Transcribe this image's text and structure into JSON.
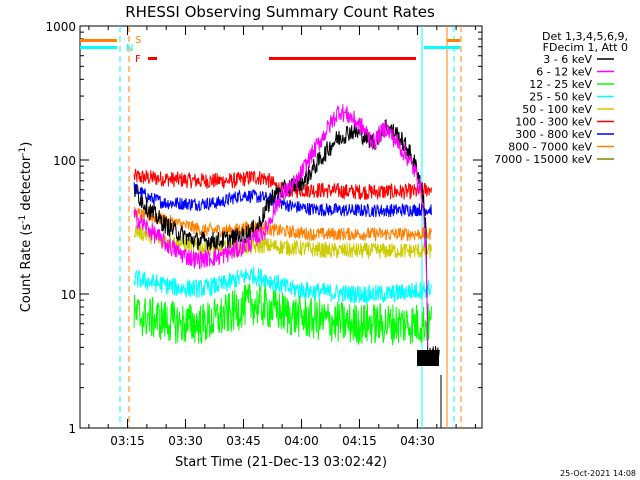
{
  "chart_data": {
    "type": "line",
    "title": "RHESSI Observing Summary Count Rates",
    "xlabel": "Start Time (21-Dec-13 03:02:42)",
    "ylabel_main": "Count Rate (s",
    "ylabel_sup1": "-1",
    "ylabel_mid": " detector",
    "ylabel_sup2": "-1",
    "ylabel_end": ")",
    "yscale": "log",
    "ylim": [
      1,
      1000
    ],
    "xlim_minutes": [
      0,
      104
    ],
    "x_tick_minutes": [
      12.3,
      27.3,
      42.3,
      57.3,
      72.3,
      87.3
    ],
    "x_tick_labels": [
      "03:15",
      "03:30",
      "03:45",
      "04:00",
      "04:15",
      "04:30"
    ],
    "y_tick_values": [
      1,
      10,
      100,
      1000
    ],
    "y_tick_labels": [
      "1",
      "10",
      "100",
      "1000"
    ],
    "legend": {
      "position": "right",
      "header1": "Det 1,3,4,5,6,9,",
      "header2": "FDecim 1, Att 0",
      "entries": [
        {
          "name": "3 - 6 keV",
          "color": "#000000"
        },
        {
          "name": "6 - 12 keV",
          "color": "#ff00ff"
        },
        {
          "name": "12 - 25 keV",
          "color": "#00ff00"
        },
        {
          "name": "25 - 50 keV",
          "color": "#00ffff"
        },
        {
          "name": "50 - 100 keV",
          "color": "#cccc00"
        },
        {
          "name": "100 - 300 keV",
          "color": "#ff0000"
        },
        {
          "name": "300 - 800 keV",
          "color": "#0000ff"
        },
        {
          "name": "800 - 7000 keV",
          "color": "#ff8000"
        },
        {
          "name": "7000 - 15000 keV",
          "color": "#808000"
        }
      ]
    },
    "flags": [
      {
        "label": "S",
        "color": "#ff8000"
      },
      {
        "label": "N",
        "color": "#00ffff"
      },
      {
        "label": "F",
        "color": "#ff0000"
      }
    ],
    "series": [
      {
        "color": "#ff0000",
        "noise": 0.06,
        "points": [
          [
            14,
            75
          ],
          [
            20,
            73
          ],
          [
            30,
            70
          ],
          [
            40,
            70
          ],
          [
            45,
            75
          ],
          [
            48,
            73
          ],
          [
            52,
            60
          ],
          [
            60,
            60
          ],
          [
            70,
            58
          ],
          [
            80,
            58
          ],
          [
            88,
            58
          ],
          [
            91,
            62
          ]
        ]
      },
      {
        "color": "#0000ff",
        "noise": 0.05,
        "points": [
          [
            14,
            62
          ],
          [
            18,
            52
          ],
          [
            22,
            48
          ],
          [
            30,
            47
          ],
          [
            36,
            48
          ],
          [
            42,
            55
          ],
          [
            48,
            52
          ],
          [
            55,
            45
          ],
          [
            60,
            43
          ],
          [
            70,
            42
          ],
          [
            80,
            42
          ],
          [
            91,
            43
          ]
        ]
      },
      {
        "color": "#ff8000",
        "noise": 0.05,
        "points": [
          [
            14,
            40
          ],
          [
            20,
            37
          ],
          [
            26,
            33
          ],
          [
            32,
            30
          ],
          [
            40,
            30
          ],
          [
            45,
            32
          ],
          [
            50,
            30
          ],
          [
            60,
            28
          ],
          [
            70,
            28
          ],
          [
            80,
            28
          ],
          [
            91,
            28
          ]
        ]
      },
      {
        "color": "#cccc00",
        "noise": 0.06,
        "points": [
          [
            14,
            30
          ],
          [
            20,
            26
          ],
          [
            26,
            24
          ],
          [
            32,
            22
          ],
          [
            40,
            22
          ],
          [
            48,
            23
          ],
          [
            56,
            22
          ],
          [
            65,
            21
          ],
          [
            75,
            21
          ],
          [
            85,
            21
          ],
          [
            91,
            21
          ]
        ]
      },
      {
        "color": "#00ffff",
        "noise": 0.07,
        "points": [
          [
            14,
            13
          ],
          [
            20,
            12
          ],
          [
            26,
            11
          ],
          [
            32,
            11
          ],
          [
            38,
            12
          ],
          [
            44,
            14
          ],
          [
            48,
            13
          ],
          [
            54,
            11
          ],
          [
            60,
            10.5
          ],
          [
            70,
            10
          ],
          [
            80,
            10
          ],
          [
            86,
            10.5
          ],
          [
            91,
            11
          ]
        ]
      },
      {
        "color": "#00ff00",
        "noise": 0.16,
        "points": [
          [
            14,
            7
          ],
          [
            20,
            6.5
          ],
          [
            26,
            6
          ],
          [
            32,
            6
          ],
          [
            38,
            7
          ],
          [
            44,
            8.5
          ],
          [
            48,
            8
          ],
          [
            54,
            7
          ],
          [
            60,
            6.5
          ],
          [
            70,
            6
          ],
          [
            80,
            6
          ],
          [
            86,
            6
          ],
          [
            91,
            6
          ]
        ]
      },
      {
        "color": "#000000",
        "noise": 0.07,
        "points": [
          [
            14,
            60
          ],
          [
            18,
            42
          ],
          [
            22,
            33
          ],
          [
            26,
            28
          ],
          [
            30,
            25
          ],
          [
            36,
            25
          ],
          [
            42,
            27
          ],
          [
            46,
            32
          ],
          [
            48,
            42
          ],
          [
            50,
            55
          ],
          [
            54,
            62
          ],
          [
            58,
            70
          ],
          [
            62,
            100
          ],
          [
            66,
            140
          ],
          [
            70,
            165
          ],
          [
            73,
            155
          ],
          [
            76,
            135
          ],
          [
            79,
            180
          ],
          [
            82,
            155
          ],
          [
            85,
            118
          ],
          [
            87,
            88
          ],
          [
            88.5,
            62
          ],
          [
            89.5,
            30
          ],
          [
            90,
            3.5
          ],
          [
            93,
            3.5
          ]
        ]
      },
      {
        "color": "#ff00ff",
        "noise": 0.07,
        "points": [
          [
            14,
            38
          ],
          [
            18,
            30
          ],
          [
            22,
            24
          ],
          [
            26,
            20
          ],
          [
            30,
            18
          ],
          [
            36,
            19
          ],
          [
            40,
            21
          ],
          [
            44,
            24
          ],
          [
            48,
            30
          ],
          [
            52,
            55
          ],
          [
            56,
            68
          ],
          [
            60,
            110
          ],
          [
            64,
            170
          ],
          [
            67,
            235
          ],
          [
            70,
            210
          ],
          [
            73,
            175
          ],
          [
            76,
            135
          ],
          [
            79,
            175
          ],
          [
            82,
            135
          ],
          [
            85,
            102
          ],
          [
            87,
            78
          ],
          [
            88.5,
            55
          ],
          [
            89.5,
            20
          ],
          [
            90,
            4
          ]
        ]
      }
    ]
  }
}
